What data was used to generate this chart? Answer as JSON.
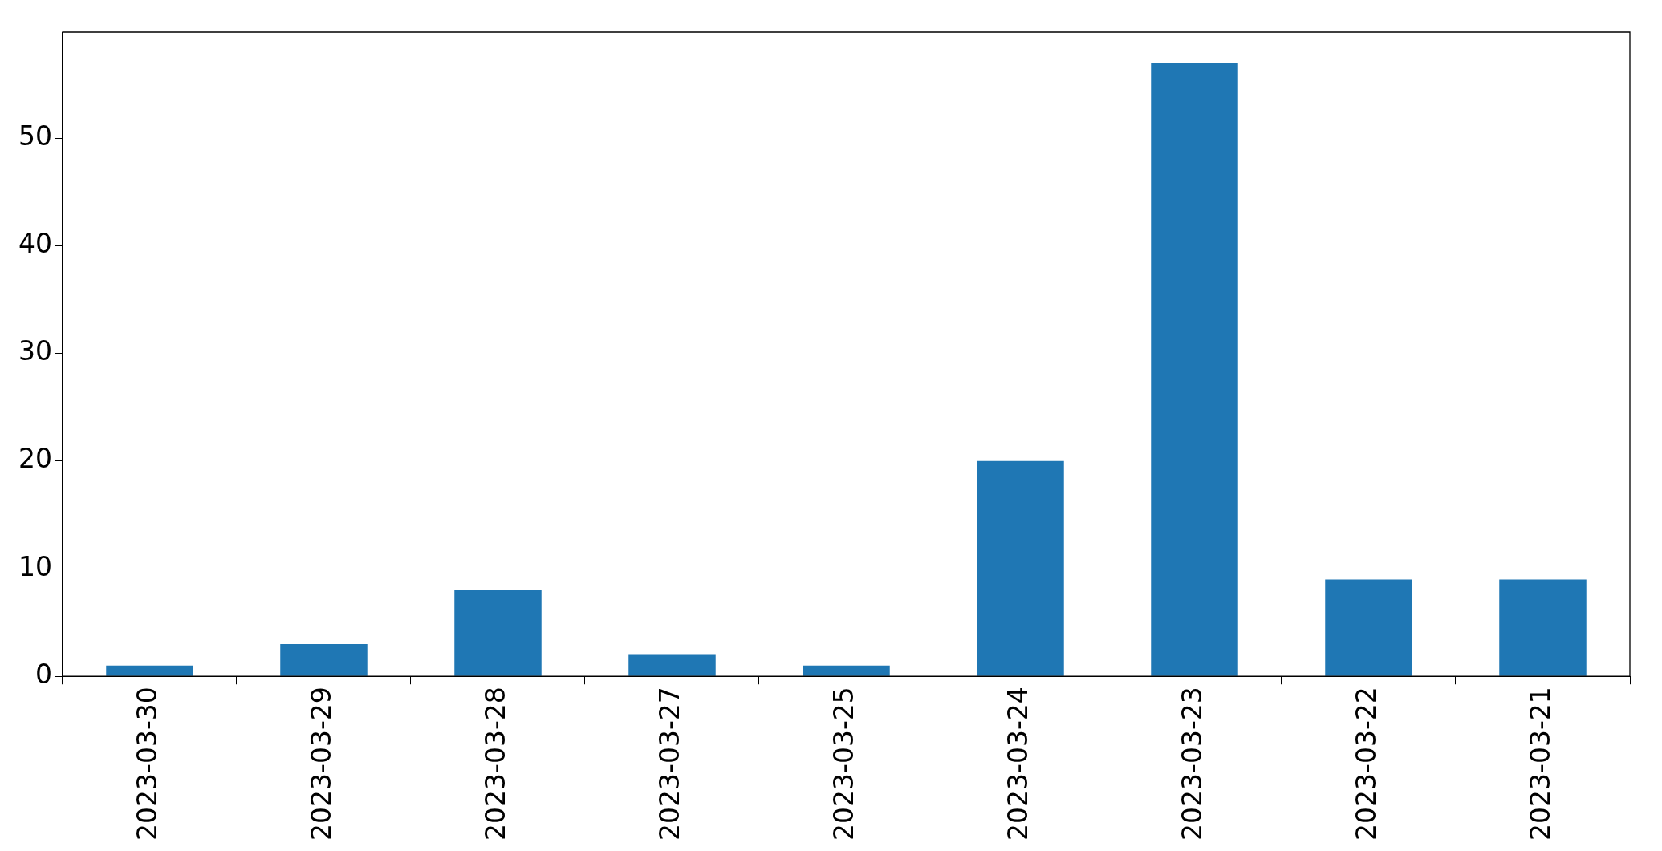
{
  "chart_data": {
    "type": "bar",
    "categories": [
      "2023-03-30",
      "2023-03-29",
      "2023-03-28",
      "2023-03-27",
      "2023-03-25",
      "2023-03-24",
      "2023-03-23",
      "2023-03-22",
      "2023-03-21"
    ],
    "values": [
      1,
      3,
      8,
      2,
      1,
      20,
      57,
      9,
      9
    ],
    "color": "#1f77b4",
    "ylim": [
      0,
      59.85
    ],
    "yticks": [
      0,
      10,
      20,
      30,
      40,
      50
    ],
    "grid": false,
    "legend": false
  }
}
